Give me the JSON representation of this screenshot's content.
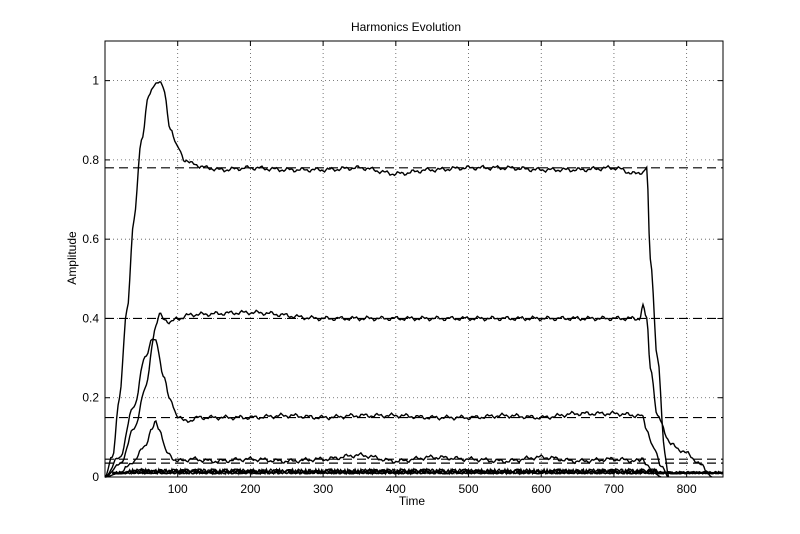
{
  "chart_data": {
    "type": "line",
    "title": "Harmonics Evolution",
    "xlabel": "Time",
    "ylabel": "Amplitude",
    "xlim": [
      0,
      850
    ],
    "ylim": [
      0,
      1.1
    ],
    "xticks": [
      100,
      200,
      300,
      400,
      500,
      600,
      700,
      800
    ],
    "yticks": [
      0,
      0.2,
      0.4,
      0.6,
      0.8,
      1
    ],
    "ytick_labels": [
      "0",
      "0.2",
      "0.4",
      "0.6",
      "0.8",
      "1"
    ],
    "grid": true,
    "grid_style": "dotted",
    "line_color": "#000000",
    "reference_levels": [
      0.78,
      0.4,
      0.15,
      0.045,
      0.035
    ],
    "series": [
      {
        "x": [
          0,
          10,
          20,
          30,
          40,
          50,
          60,
          70,
          75,
          80,
          90,
          100,
          110,
          120,
          140,
          160,
          200,
          250,
          300,
          350,
          400,
          450,
          500,
          550,
          600,
          650,
          700,
          730,
          740,
          745,
          750,
          760,
          770,
          775
        ],
        "y": [
          0,
          0.05,
          0.2,
          0.42,
          0.65,
          0.85,
          0.96,
          0.995,
          1.0,
          0.98,
          0.88,
          0.83,
          0.8,
          0.79,
          0.78,
          0.775,
          0.78,
          0.775,
          0.775,
          0.78,
          0.765,
          0.775,
          0.78,
          0.78,
          0.775,
          0.775,
          0.78,
          0.765,
          0.77,
          0.78,
          0.55,
          0.3,
          0.06,
          0
        ]
      },
      {
        "x": [
          0,
          20,
          40,
          55,
          70,
          75,
          80,
          90,
          100,
          120,
          200,
          300,
          400,
          500,
          600,
          700,
          735,
          740,
          745,
          750,
          760,
          780,
          800,
          820,
          835
        ],
        "y": [
          0,
          0.03,
          0.12,
          0.22,
          0.38,
          0.41,
          0.4,
          0.39,
          0.4,
          0.41,
          0.415,
          0.4,
          0.4,
          0.4,
          0.4,
          0.4,
          0.4,
          0.43,
          0.4,
          0.28,
          0.15,
          0.08,
          0.06,
          0.03,
          0
        ]
      },
      {
        "x": [
          0,
          20,
          40,
          55,
          65,
          70,
          80,
          90,
          100,
          110,
          130,
          150,
          200,
          250,
          300,
          350,
          400,
          450,
          500,
          550,
          600,
          650,
          700,
          735,
          740,
          745,
          755,
          765,
          775
        ],
        "y": [
          0,
          0.05,
          0.18,
          0.3,
          0.35,
          0.34,
          0.26,
          0.19,
          0.155,
          0.14,
          0.15,
          0.15,
          0.15,
          0.155,
          0.15,
          0.155,
          0.155,
          0.15,
          0.15,
          0.155,
          0.15,
          0.16,
          0.16,
          0.155,
          0.15,
          0.12,
          0.07,
          0.03,
          0
        ]
      },
      {
        "x": [
          0,
          20,
          40,
          55,
          65,
          70,
          75,
          85,
          100,
          120,
          150,
          200,
          250,
          300,
          350,
          400,
          450,
          500,
          550,
          600,
          650,
          700,
          735,
          740,
          745,
          755,
          765
        ],
        "y": [
          0,
          0.01,
          0.04,
          0.08,
          0.12,
          0.14,
          0.12,
          0.06,
          0.04,
          0.045,
          0.04,
          0.045,
          0.04,
          0.045,
          0.055,
          0.04,
          0.05,
          0.045,
          0.04,
          0.05,
          0.04,
          0.045,
          0.04,
          0.05,
          0.03,
          0.01,
          0
        ]
      }
    ]
  }
}
